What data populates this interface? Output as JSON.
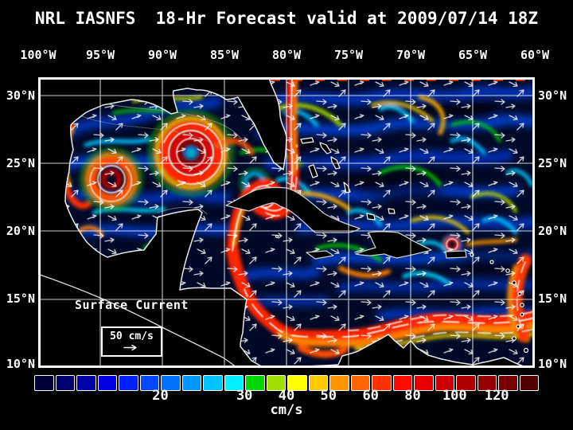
{
  "title": "NRL IASNFS  18-Hr Forecast valid at 2009/07/14 18Z",
  "colors": {
    "background": "#000000",
    "text": "#ffffff",
    "frame": "#ffffff"
  },
  "map": {
    "top_axis": [
      "100°W",
      "95°W",
      "90°W",
      "85°W",
      "80°W",
      "75°W",
      "70°W",
      "65°W",
      "60°W"
    ],
    "left_axis": [
      "30°N",
      "25°N",
      "20°N",
      "15°N",
      "10°N"
    ],
    "right_axis": [
      "30°N",
      "25°N",
      "20°N",
      "15°N",
      "10°N"
    ],
    "overlay": {
      "label": "Surface Current",
      "scale_value": "50 cm/s"
    }
  },
  "colorbar": {
    "unit": "cm/s",
    "tick_labels": [
      "20",
      "30",
      "40",
      "50",
      "60",
      "80",
      "100",
      "120"
    ],
    "tick_positions_pct": [
      25,
      41.67,
      50,
      58.33,
      66.67,
      75,
      83.33,
      91.67
    ],
    "colors": [
      "#000038",
      "#000070",
      "#0000a8",
      "#0000e0",
      "#0020ff",
      "#0048ff",
      "#0070ff",
      "#0098ff",
      "#00c4ff",
      "#00eeff",
      "#00d800",
      "#a0e000",
      "#ffff00",
      "#ffc800",
      "#ff9600",
      "#ff6400",
      "#ff3200",
      "#ff0c00",
      "#e60000",
      "#cc0000",
      "#b00000",
      "#940000",
      "#780000",
      "#500000"
    ]
  },
  "chart_data": {
    "type": "heatmap",
    "title": "NRL IASNFS 18-Hr Forecast valid at 2009/07/14 18Z",
    "variable": "Surface Current speed",
    "unit": "cm/s",
    "x_ticks": [
      "100°W",
      "95°W",
      "90°W",
      "85°W",
      "80°W",
      "75°W",
      "70°W",
      "65°W",
      "60°W"
    ],
    "y_ticks": [
      "30°N",
      "25°N",
      "20°N",
      "15°N",
      "10°N"
    ],
    "legend_ticks": [
      20,
      30,
      40,
      50,
      60,
      80,
      100,
      120
    ],
    "reference_vector": "50 cm/s"
  }
}
